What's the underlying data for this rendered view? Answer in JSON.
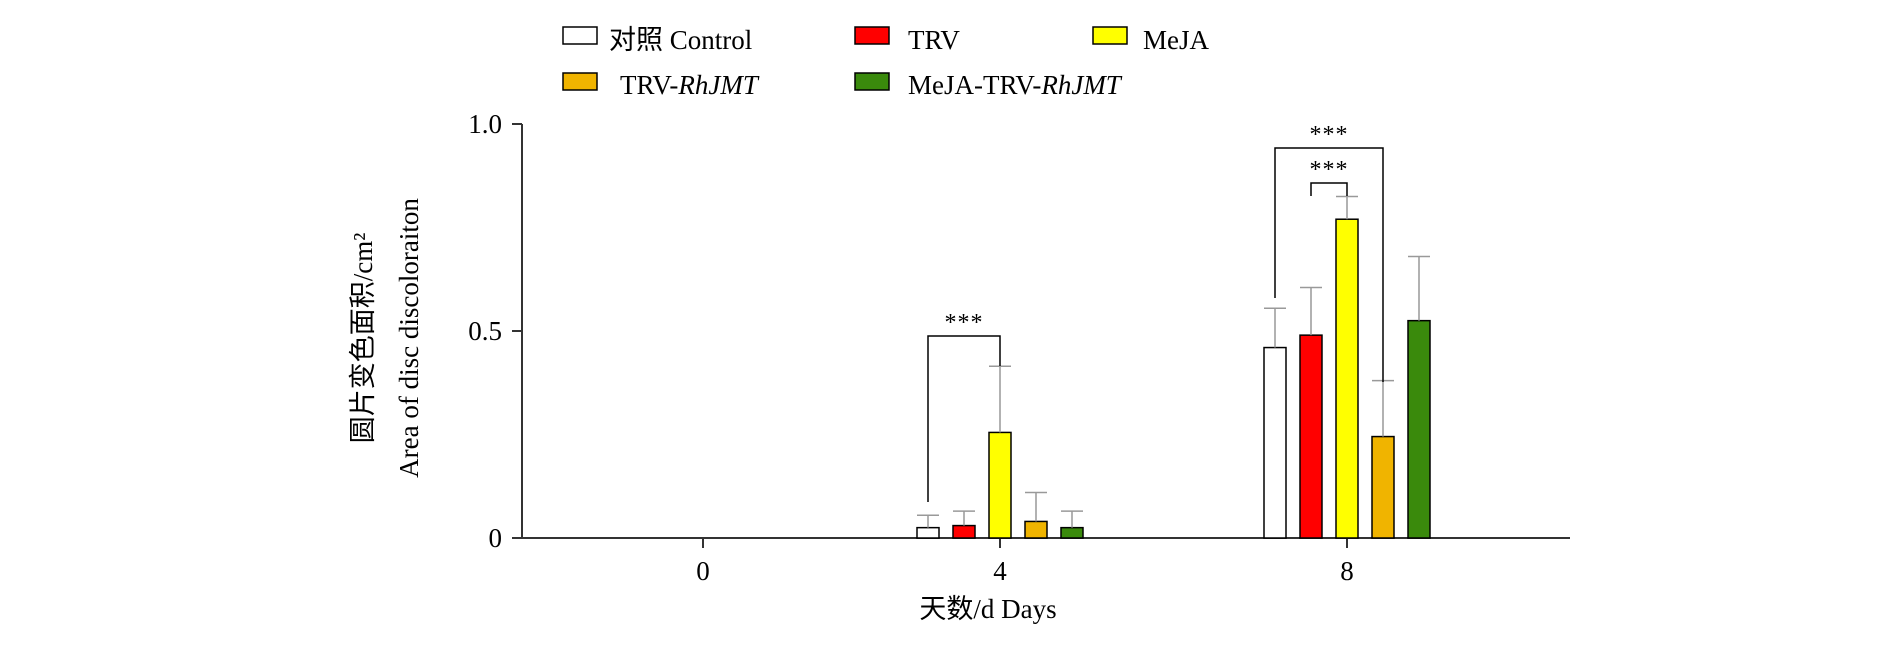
{
  "chart_data": {
    "type": "bar",
    "categories": [
      "0",
      "4",
      "8"
    ],
    "xlabel": "天数/d Days",
    "ylabel": [
      "圆片变色面积/cm²",
      "Area of disc discoloraiton"
    ],
    "ylim": [
      0,
      1.0
    ],
    "yticks": [
      {
        "value": 0,
        "label": "0"
      },
      {
        "value": 0.5,
        "label": "0.5"
      },
      {
        "value": 1.0,
        "label": "1.0"
      }
    ],
    "legend": {
      "placement": "top",
      "entries": [
        {
          "plain": "对照 Control",
          "italic": ""
        },
        {
          "plain": "TRV",
          "italic": ""
        },
        {
          "plain": "MeJA",
          "italic": ""
        },
        {
          "plain": "TRV-",
          "italic": "RhJMT"
        },
        {
          "plain": "MeJA-TRV-",
          "italic": "RhJMT"
        }
      ]
    },
    "series": [
      {
        "name": "对照 Control",
        "color": "#ffffff",
        "values": [
          0,
          0.025,
          0.46
        ],
        "errors": [
          0,
          0.03,
          0.095
        ]
      },
      {
        "name": "TRV",
        "color": "#ff0000",
        "values": [
          0,
          0.03,
          0.49
        ],
        "errors": [
          0,
          0.035,
          0.115
        ]
      },
      {
        "name": "MeJA",
        "color": "#ffff00",
        "values": [
          0,
          0.255,
          0.77
        ],
        "errors": [
          0,
          0.16,
          0.055
        ]
      },
      {
        "name": "TRV-RhJMT",
        "color": "#f0b400",
        "values": [
          0,
          0.04,
          0.245
        ],
        "errors": [
          0,
          0.07,
          0.135
        ]
      },
      {
        "name": "MeJA-TRV-RhJMT",
        "color": "#3a8a0c",
        "values": [
          0,
          0.025,
          0.525
        ],
        "errors": [
          0,
          0.04,
          0.155
        ]
      }
    ],
    "significance": [
      {
        "category": "4",
        "from_series": 0,
        "to_series": 2,
        "label": "***"
      },
      {
        "category": "8",
        "from_series": 1,
        "to_series": 2,
        "label": "***"
      },
      {
        "category": "8",
        "from_series": 0,
        "to_series": 3,
        "label": "***"
      }
    ],
    "grid": false
  }
}
